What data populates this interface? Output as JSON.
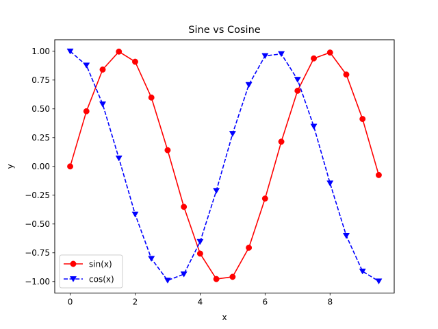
{
  "chart_data": {
    "type": "line",
    "title": "Sine vs Cosine",
    "xlabel": "x",
    "ylabel": "y",
    "xlim": [
      -0.475,
      9.975
    ],
    "ylim": [
      -1.1,
      1.1
    ],
    "xticks": [
      0,
      2,
      4,
      6,
      8
    ],
    "xtick_labels": [
      "0",
      "2",
      "4",
      "6",
      "8"
    ],
    "yticks": [
      -1.0,
      -0.75,
      -0.5,
      -0.25,
      0.0,
      0.25,
      0.5,
      0.75,
      1.0
    ],
    "ytick_labels": [
      "−1.00",
      "−0.75",
      "−0.50",
      "−0.25",
      "0.00",
      "0.25",
      "0.50",
      "0.75",
      "1.00"
    ],
    "grid": false,
    "legend_position": "lower-left",
    "x": [
      0,
      0.5,
      1,
      1.5,
      2,
      2.5,
      3,
      3.5,
      4,
      4.5,
      5,
      5.5,
      6,
      6.5,
      7,
      7.5,
      8,
      8.5,
      9,
      9.5
    ],
    "series": [
      {
        "name": "sin(x)",
        "color": "#ff0000",
        "linestyle": "solid",
        "marker": "circle",
        "values": [
          0.0,
          0.479,
          0.841,
          0.997,
          0.909,
          0.598,
          0.141,
          -0.351,
          -0.757,
          -0.978,
          -0.959,
          -0.706,
          -0.279,
          0.215,
          0.657,
          0.938,
          0.989,
          0.798,
          0.412,
          -0.075
        ]
      },
      {
        "name": "cos(x)",
        "color": "#0000ff",
        "linestyle": "dashed",
        "marker": "triangle-down",
        "values": [
          1.0,
          0.878,
          0.54,
          0.071,
          -0.416,
          -0.801,
          -0.99,
          -0.936,
          -0.654,
          -0.211,
          0.284,
          0.709,
          0.96,
          0.977,
          0.754,
          0.347,
          -0.146,
          -0.602,
          -0.911,
          -0.997
        ]
      }
    ]
  }
}
